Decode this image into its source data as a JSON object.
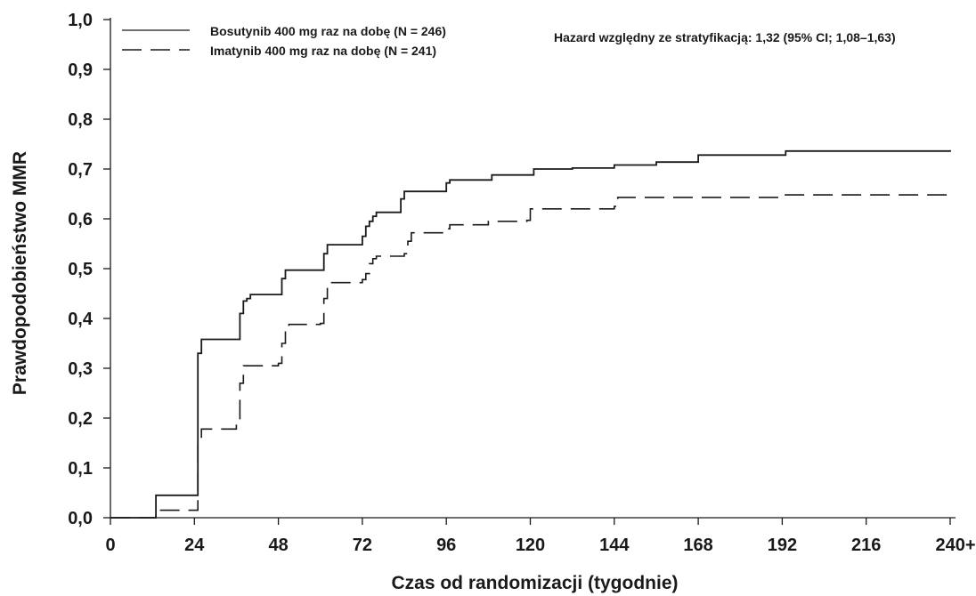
{
  "chart_data": {
    "type": "line",
    "xlabel": "Czas od randomizacji (tygodnie)",
    "ylabel": "Prawdopodobieństwo MMR",
    "xlim": [
      0,
      240
    ],
    "ylim": [
      0,
      1.0
    ],
    "x_ticks": [
      0,
      24,
      48,
      72,
      96,
      120,
      144,
      168,
      192,
      216,
      240
    ],
    "x_tick_labels": [
      "0",
      "24",
      "48",
      "72",
      "96",
      "120",
      "144",
      "168",
      "192",
      "216",
      "240+"
    ],
    "y_ticks": [
      0.0,
      0.1,
      0.2,
      0.3,
      0.4,
      0.5,
      0.6,
      0.7,
      0.8,
      0.9,
      1.0
    ],
    "y_tick_labels": [
      "0,0",
      "0,1",
      "0,2",
      "0,3",
      "0,4",
      "0,5",
      "0,6",
      "0,7",
      "0,8",
      "0,9",
      "1,0"
    ],
    "grid": false,
    "legend_position": "top-left",
    "annotation": "Hazard względny ze stratyfikacją: 1,32 (95% CI; 1,08–1,63)",
    "series": [
      {
        "name": "Bosutynib 400 mg raz na dobę (N = 246)",
        "style": "solid",
        "color": "#1a1a1a",
        "x": [
          0,
          12,
          13,
          24,
          25,
          26,
          36,
          37,
          38,
          39,
          40,
          48,
          49,
          50,
          60,
          61,
          62,
          71,
          72,
          73,
          74,
          75,
          76,
          80,
          83,
          84,
          85,
          95,
          96,
          97,
          108,
          109,
          120,
          121,
          132,
          144,
          156,
          168,
          192,
          193,
          240
        ],
        "y": [
          0.0,
          0.0,
          0.045,
          0.045,
          0.33,
          0.358,
          0.358,
          0.41,
          0.435,
          0.44,
          0.448,
          0.448,
          0.48,
          0.497,
          0.497,
          0.53,
          0.548,
          0.548,
          0.565,
          0.585,
          0.595,
          0.605,
          0.613,
          0.613,
          0.64,
          0.655,
          0.655,
          0.655,
          0.672,
          0.678,
          0.678,
          0.688,
          0.688,
          0.7,
          0.702,
          0.708,
          0.714,
          0.728,
          0.728,
          0.736,
          0.738
        ]
      },
      {
        "name": "Imatynib 400 mg raz na dobę (N = 241)",
        "style": "dashed",
        "color": "#1a1a1a",
        "x": [
          0,
          12,
          13,
          24,
          25,
          26,
          36,
          37,
          38,
          48,
          49,
          50,
          51,
          60,
          61,
          62,
          72,
          73,
          74,
          75,
          76,
          84,
          85,
          86,
          95,
          96,
          97,
          108,
          119,
          120,
          121,
          144,
          145,
          192,
          240
        ],
        "y": [
          0.0,
          0.0,
          0.015,
          0.015,
          0.15,
          0.178,
          0.19,
          0.27,
          0.305,
          0.31,
          0.35,
          0.38,
          0.388,
          0.39,
          0.44,
          0.472,
          0.478,
          0.49,
          0.51,
          0.52,
          0.525,
          0.53,
          0.555,
          0.572,
          0.572,
          0.58,
          0.588,
          0.595,
          0.597,
          0.62,
          0.62,
          0.625,
          0.643,
          0.648,
          0.657
        ]
      }
    ]
  }
}
